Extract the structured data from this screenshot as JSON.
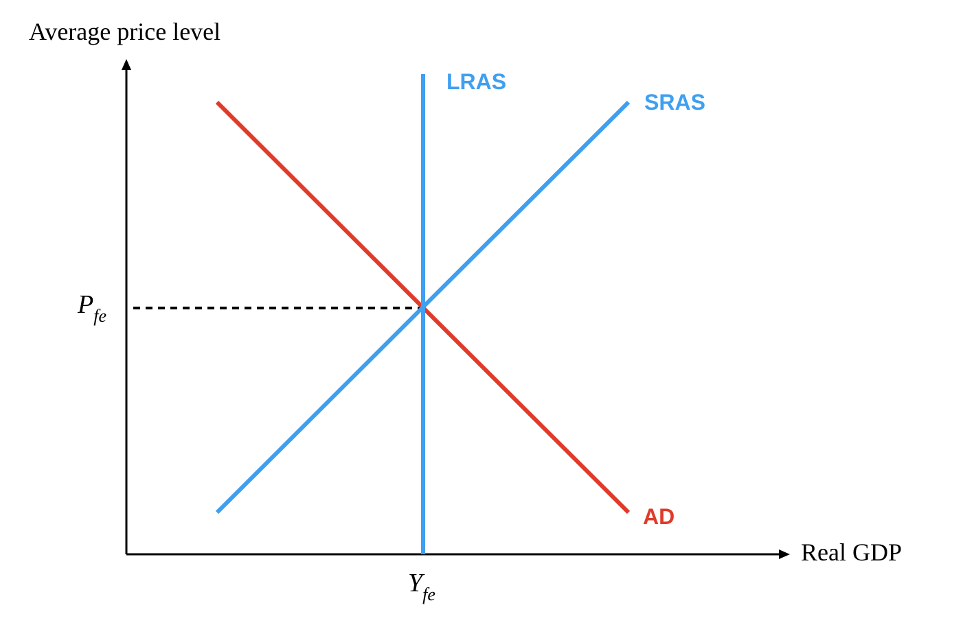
{
  "axes": {
    "y_title": "Average price level",
    "x_title": "Real GDP"
  },
  "curves": {
    "lras": {
      "label": "LRAS"
    },
    "sras": {
      "label": "SRAS"
    },
    "ad": {
      "label": "AD"
    }
  },
  "equilibrium": {
    "price_symbol": "P",
    "price_subscript": "fe",
    "output_symbol": "Y",
    "output_subscript": "fe"
  },
  "colors": {
    "supply": "#3f9ff0",
    "demand": "#e03b2a",
    "axis": "#000000"
  }
}
